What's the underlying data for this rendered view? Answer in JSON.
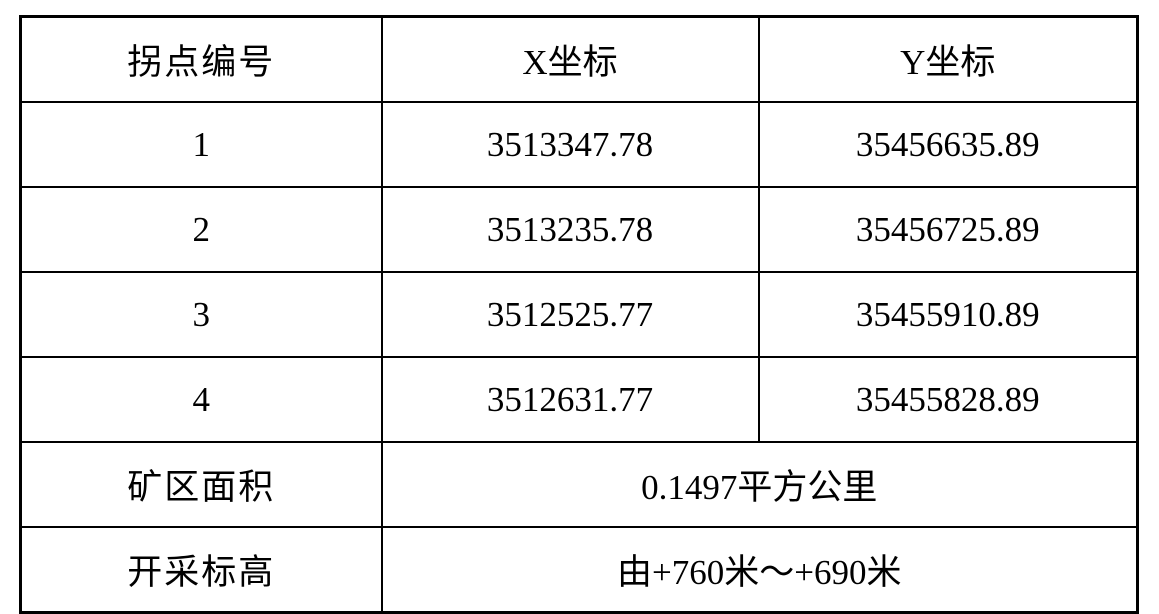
{
  "table": {
    "headers": {
      "point_id": "拐点编号",
      "x_coord": "X坐标",
      "y_coord": "Y坐标"
    },
    "rows": [
      {
        "id": "1",
        "x": "3513347.78",
        "y": "35456635.89"
      },
      {
        "id": "2",
        "x": "3513235.78",
        "y": "35456725.89"
      },
      {
        "id": "3",
        "x": "3512525.77",
        "y": "35455910.89"
      },
      {
        "id": "4",
        "x": "3512631.77",
        "y": "35455828.89"
      }
    ],
    "area": {
      "label": "矿区面积",
      "value": "0.1497平方公里"
    },
    "elevation": {
      "label": "开采标高",
      "value": "由+760米～+690米"
    }
  },
  "colors": {
    "border": "#000000",
    "text": "#000000",
    "background": "#ffffff"
  }
}
